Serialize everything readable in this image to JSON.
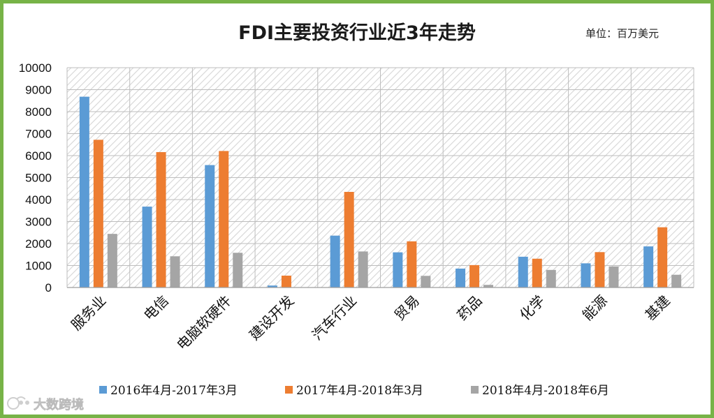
{
  "chart_data": {
    "type": "bar",
    "title": "FDI主要投资行业近3年走势",
    "unit_label": "单位：百万美元",
    "categories": [
      "服务业",
      "电信",
      "电脑软硬件",
      "建设开发",
      "汽车行业",
      "贸易",
      "药品",
      "化学",
      "能源",
      "基建"
    ],
    "series": [
      {
        "name": "2016年4月-2017年3月",
        "color": "#5b9bd5",
        "values": [
          8680,
          3680,
          5570,
          90,
          2360,
          1600,
          860,
          1400,
          1100,
          1870
        ]
      },
      {
        "name": "2017年4月-2018年3月",
        "color": "#ed7d31",
        "values": [
          6720,
          6160,
          6210,
          540,
          4350,
          2100,
          1020,
          1310,
          1610,
          2740
        ]
      },
      {
        "name": "2018年4月-2018年6月",
        "color": "#a5a5a5",
        "values": [
          2440,
          1420,
          1580,
          0,
          1640,
          530,
          120,
          800,
          960,
          580
        ]
      }
    ],
    "yticks": [
      0,
      1000,
      2000,
      3000,
      4000,
      5000,
      6000,
      7000,
      8000,
      9000,
      10000
    ],
    "ylim": [
      0,
      10000
    ],
    "legend_position": "bottom",
    "grid": true
  },
  "watermark": {
    "text": "大数跨境"
  }
}
